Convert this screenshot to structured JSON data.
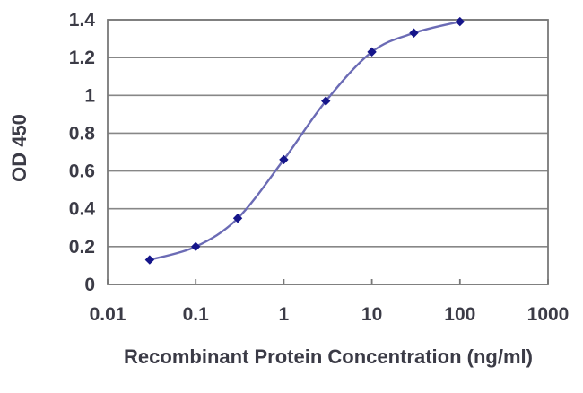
{
  "chart_data": {
    "type": "line",
    "title": "",
    "xlabel": "Recombinant Protein Concentration (ng/ml)",
    "ylabel": "OD 450",
    "x_scale": "log",
    "xlim": [
      0.01,
      1000
    ],
    "ylim": [
      0,
      1.4
    ],
    "x_ticks": [
      0.01,
      0.1,
      1,
      10,
      100,
      1000
    ],
    "x_tick_labels": [
      "0.01",
      "0.1",
      "1",
      "10",
      "100",
      "1000"
    ],
    "y_ticks": [
      0,
      0.2,
      0.4,
      0.6,
      0.8,
      1,
      1.2,
      1.4
    ],
    "y_tick_labels": [
      "0",
      "0.2",
      "0.4",
      "0.6",
      "0.8",
      "1",
      "1.2",
      "1.4"
    ],
    "grid": "horizontal",
    "legend": "none",
    "series": [
      {
        "name": "OD 450",
        "x": [
          0.03,
          0.1,
          0.3,
          1,
          3,
          10,
          30,
          100
        ],
        "y": [
          0.13,
          0.2,
          0.35,
          0.66,
          0.97,
          1.23,
          1.33,
          1.39
        ],
        "marker": "diamond",
        "smooth": true,
        "line_color": "#6b6bb5",
        "marker_color": "#15158a"
      }
    ],
    "colors": {
      "grid": "#878787",
      "border": "#787878",
      "text": "#3b3b46",
      "background": "#ffffff"
    }
  }
}
